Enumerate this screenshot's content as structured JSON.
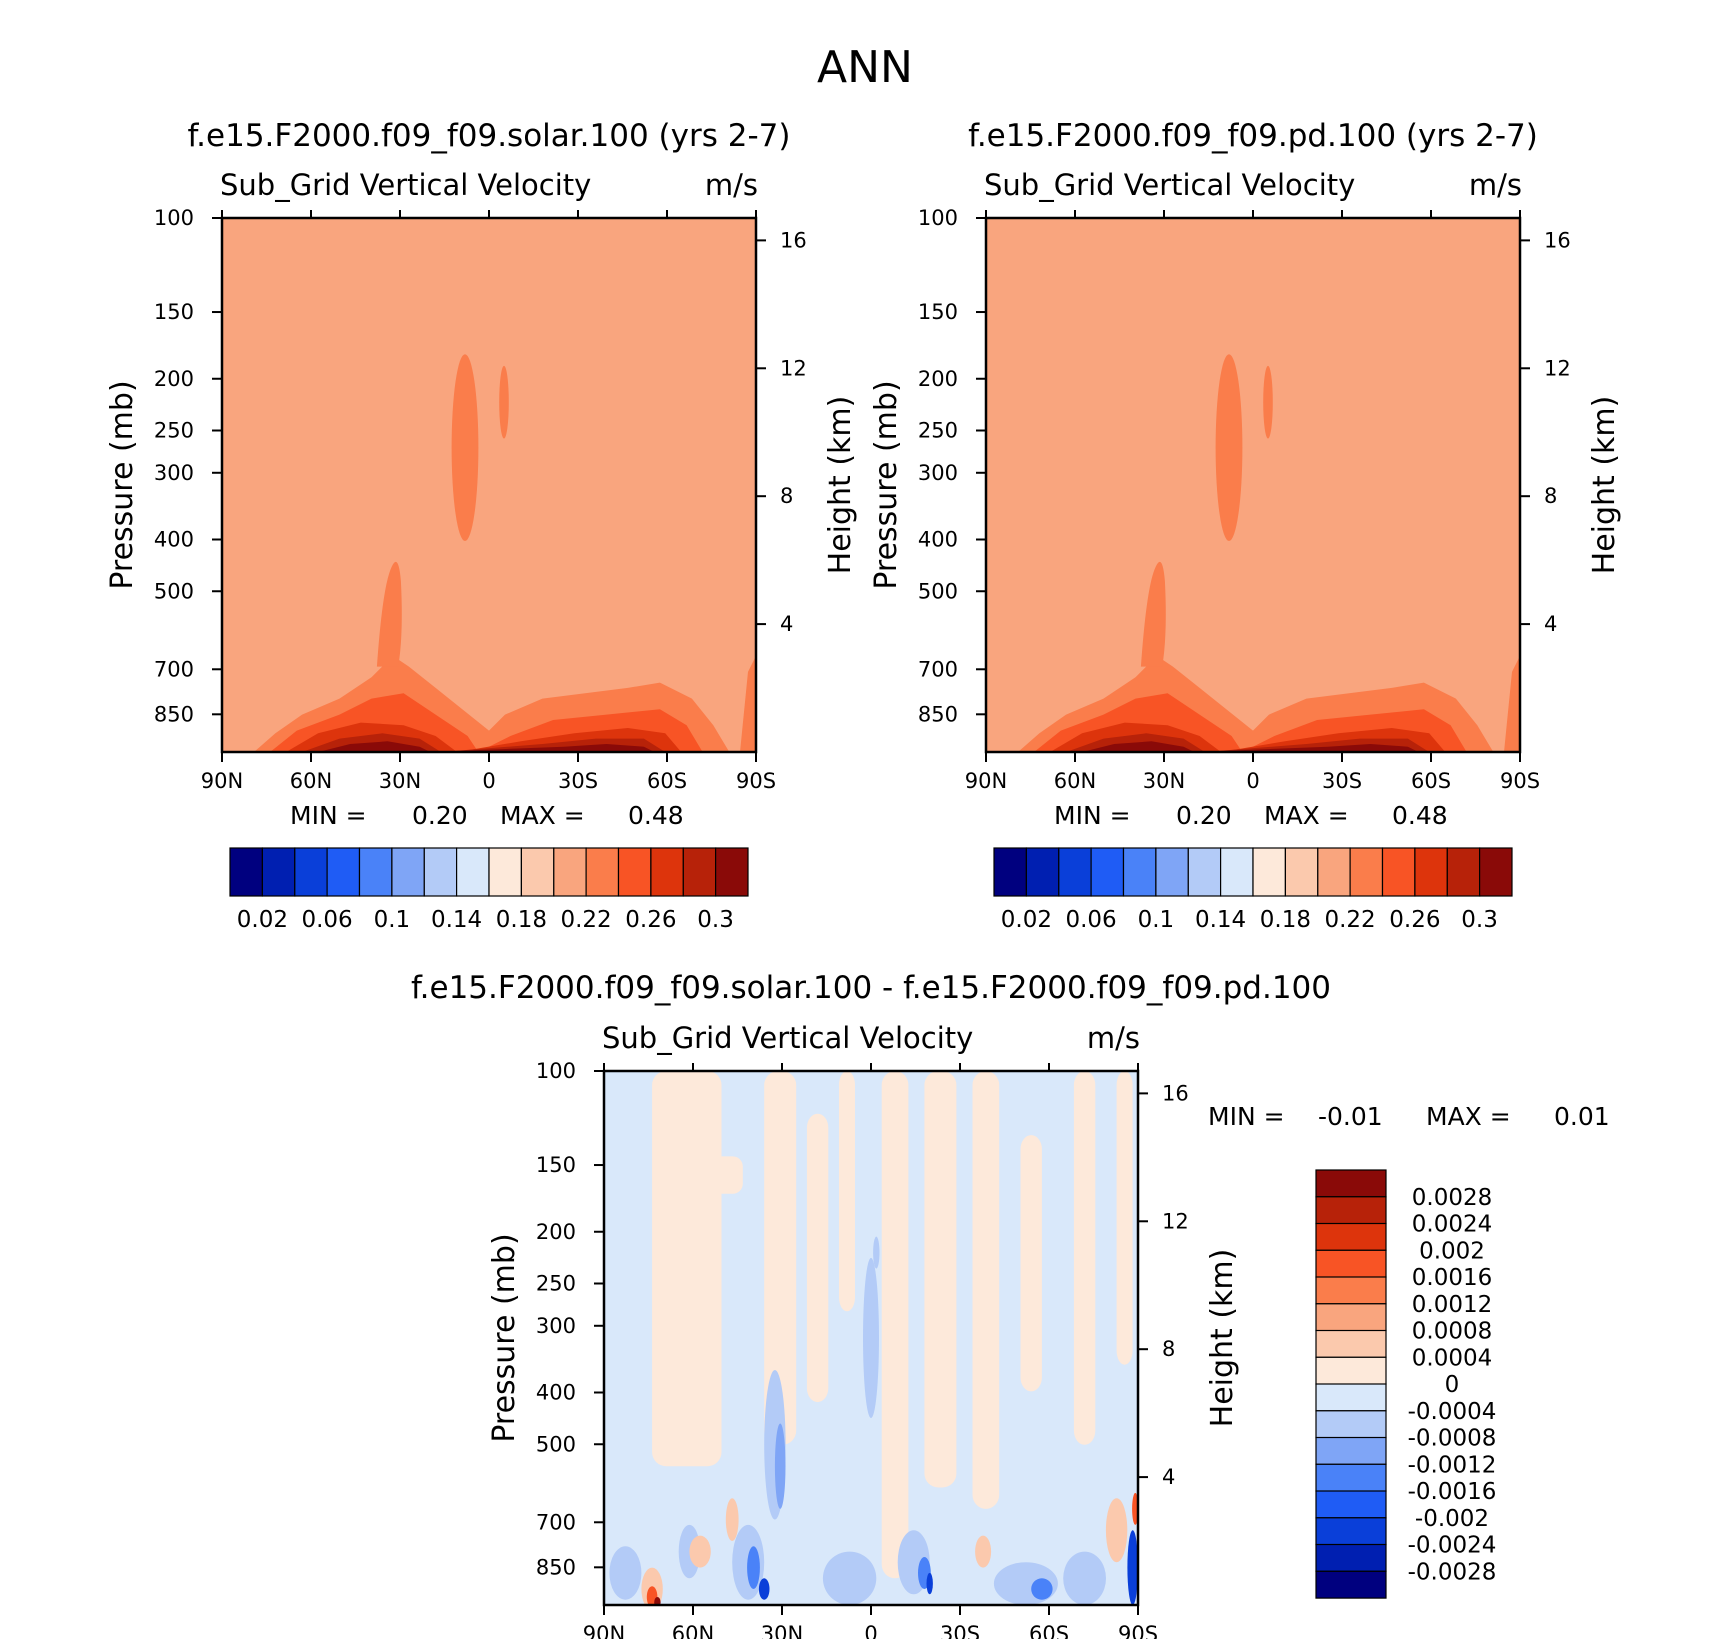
{
  "figure_title": "ANN",
  "colors": {
    "sequential": [
      "#00007f",
      "#001fb1",
      "#0a3fd9",
      "#1f5cf5",
      "#4a82f8",
      "#7fa5f6",
      "#b3cbf7",
      "#d9e8fa",
      "#fde9da",
      "#fbc9ad",
      "#f9a57e",
      "#fa7d4b",
      "#f85425",
      "#dd340c",
      "#b72209",
      "#8a0a08"
    ]
  },
  "chart_data": [
    {
      "type": "heatmap",
      "title": "f.e15.F2000.f09_f09.solar.100 (yrs 2-7)",
      "subtitle_left": "Sub_Grid Vertical Velocity",
      "subtitle_right": "m/s",
      "ylabel": "Pressure (mb)",
      "ylabel_right": "Height (km)",
      "x_ticks": [
        "90N",
        "60N",
        "30N",
        "0",
        "30S",
        "60S",
        "90S"
      ],
      "y_ticks": [
        "100",
        "150",
        "200",
        "250",
        "300",
        "400",
        "500",
        "700",
        "850"
      ],
      "y_right_ticks": [
        "16",
        "12",
        "8",
        "4"
      ],
      "ylim": [
        1000,
        100
      ],
      "y_scale": "log",
      "background_value": 0.21,
      "min_label": "MIN =",
      "min_value": "0.20",
      "max_label": "MAX =",
      "max_value": "0.48",
      "colorbar_labels": [
        "0.02",
        "0.06",
        "0.1",
        "0.14",
        "0.18",
        "0.22",
        "0.26",
        "0.3"
      ]
    },
    {
      "type": "heatmap",
      "title": "f.e15.F2000.f09_f09.pd.100 (yrs 2-7)",
      "subtitle_left": "Sub_Grid Vertical Velocity",
      "subtitle_right": "m/s",
      "ylabel": "Pressure (mb)",
      "ylabel_right": "Height (km)",
      "x_ticks": [
        "90N",
        "60N",
        "30N",
        "0",
        "30S",
        "60S",
        "90S"
      ],
      "y_ticks": [
        "100",
        "150",
        "200",
        "250",
        "300",
        "400",
        "500",
        "700",
        "850"
      ],
      "y_right_ticks": [
        "16",
        "12",
        "8",
        "4"
      ],
      "ylim": [
        1000,
        100
      ],
      "y_scale": "log",
      "background_value": 0.21,
      "min_label": "MIN =",
      "min_value": "0.20",
      "max_label": "MAX =",
      "max_value": "0.48",
      "colorbar_labels": [
        "0.02",
        "0.06",
        "0.1",
        "0.14",
        "0.18",
        "0.22",
        "0.26",
        "0.3"
      ]
    },
    {
      "type": "heatmap",
      "title": "f.e15.F2000.f09_f09.solar.100 - f.e15.F2000.f09_f09.pd.100",
      "subtitle_left": "Sub_Grid Vertical Velocity",
      "subtitle_right": "m/s",
      "ylabel": "Pressure (mb)",
      "ylabel_right": "Height (km)",
      "x_ticks": [
        "90N",
        "60N",
        "30N",
        "0",
        "30S",
        "60S",
        "90S"
      ],
      "y_ticks": [
        "100",
        "150",
        "200",
        "250",
        "300",
        "400",
        "500",
        "700",
        "850"
      ],
      "y_right_ticks": [
        "16",
        "12",
        "8",
        "4"
      ],
      "ylim": [
        1000,
        100
      ],
      "y_scale": "log",
      "min_label": "MIN =",
      "min_value": "-0.01",
      "max_label": "MAX =",
      "max_value": "0.01",
      "colorbar_labels": [
        "0.0028",
        "0.0024",
        "0.002",
        "0.0016",
        "0.0012",
        "0.0008",
        "0.0004",
        "0",
        "-0.0004",
        "-0.0008",
        "-0.0012",
        "-0.0016",
        "-0.002",
        "-0.0024",
        "-0.0028"
      ],
      "colorbar_colors": [
        "#8a0a08",
        "#b72209",
        "#dd340c",
        "#f85425",
        "#fa7d4b",
        "#f9a57e",
        "#fbc9ad",
        "#fde9da",
        "#d9e8fa",
        "#b3cbf7",
        "#7fa5f6",
        "#4a82f8",
        "#1f5cf5",
        "#0a3fd9",
        "#001fb1",
        "#00007f"
      ]
    }
  ]
}
